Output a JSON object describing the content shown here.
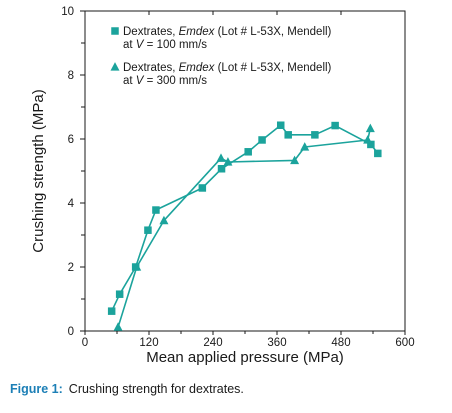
{
  "chart_data": {
    "type": "line",
    "xlabel": "Mean applied pressure (MPa)",
    "ylabel": "Crushing strength (MPa)",
    "xlim": [
      0,
      600
    ],
    "ylim": [
      0,
      10
    ],
    "x_ticks": [
      0,
      120,
      240,
      360,
      480,
      600
    ],
    "x_tick_labels": [
      "0",
      "120",
      "240",
      "360",
      "480",
      "600"
    ],
    "y_ticks": [
      0,
      2,
      4,
      6,
      8,
      10
    ],
    "y_tick_labels": [
      "0",
      "2",
      "4",
      "6",
      "8",
      "10"
    ],
    "grid": false,
    "legend_position": "top-left",
    "series_color": "#1ba39c",
    "series": [
      {
        "name_parts": [
          "Dextrates, ",
          "Emdex",
          " (Lot # L-53X, Mendell)",
          "at ",
          "V",
          " = 100 mm/s"
        ],
        "marker": "square",
        "points": [
          [
            50,
            0.62
          ],
          [
            65,
            1.15
          ],
          [
            95,
            2.0
          ],
          [
            118,
            3.15
          ],
          [
            133,
            3.78
          ],
          [
            220,
            4.47
          ],
          [
            256,
            5.07
          ],
          [
            306,
            5.6
          ],
          [
            332,
            5.97
          ],
          [
            367,
            6.43
          ],
          [
            381,
            6.13
          ],
          [
            431,
            6.13
          ],
          [
            469,
            6.42
          ],
          [
            536,
            5.83
          ],
          [
            549,
            5.55
          ]
        ]
      },
      {
        "name_parts": [
          "Dextrates, ",
          "Emdex",
          " (Lot # L-53X, Mendell)",
          "at ",
          "V",
          " = 300 mm/s"
        ],
        "marker": "triangle",
        "points": [
          [
            62,
            0.12
          ],
          [
            97,
            2.0
          ],
          [
            148,
            3.45
          ],
          [
            255,
            5.4
          ],
          [
            268,
            5.28
          ],
          [
            393,
            5.33
          ],
          [
            412,
            5.75
          ],
          [
            530,
            5.97
          ],
          [
            535,
            6.33
          ]
        ]
      }
    ]
  },
  "caption": {
    "label": "Figure 1:",
    "text": "Crushing strength for dextrates."
  }
}
